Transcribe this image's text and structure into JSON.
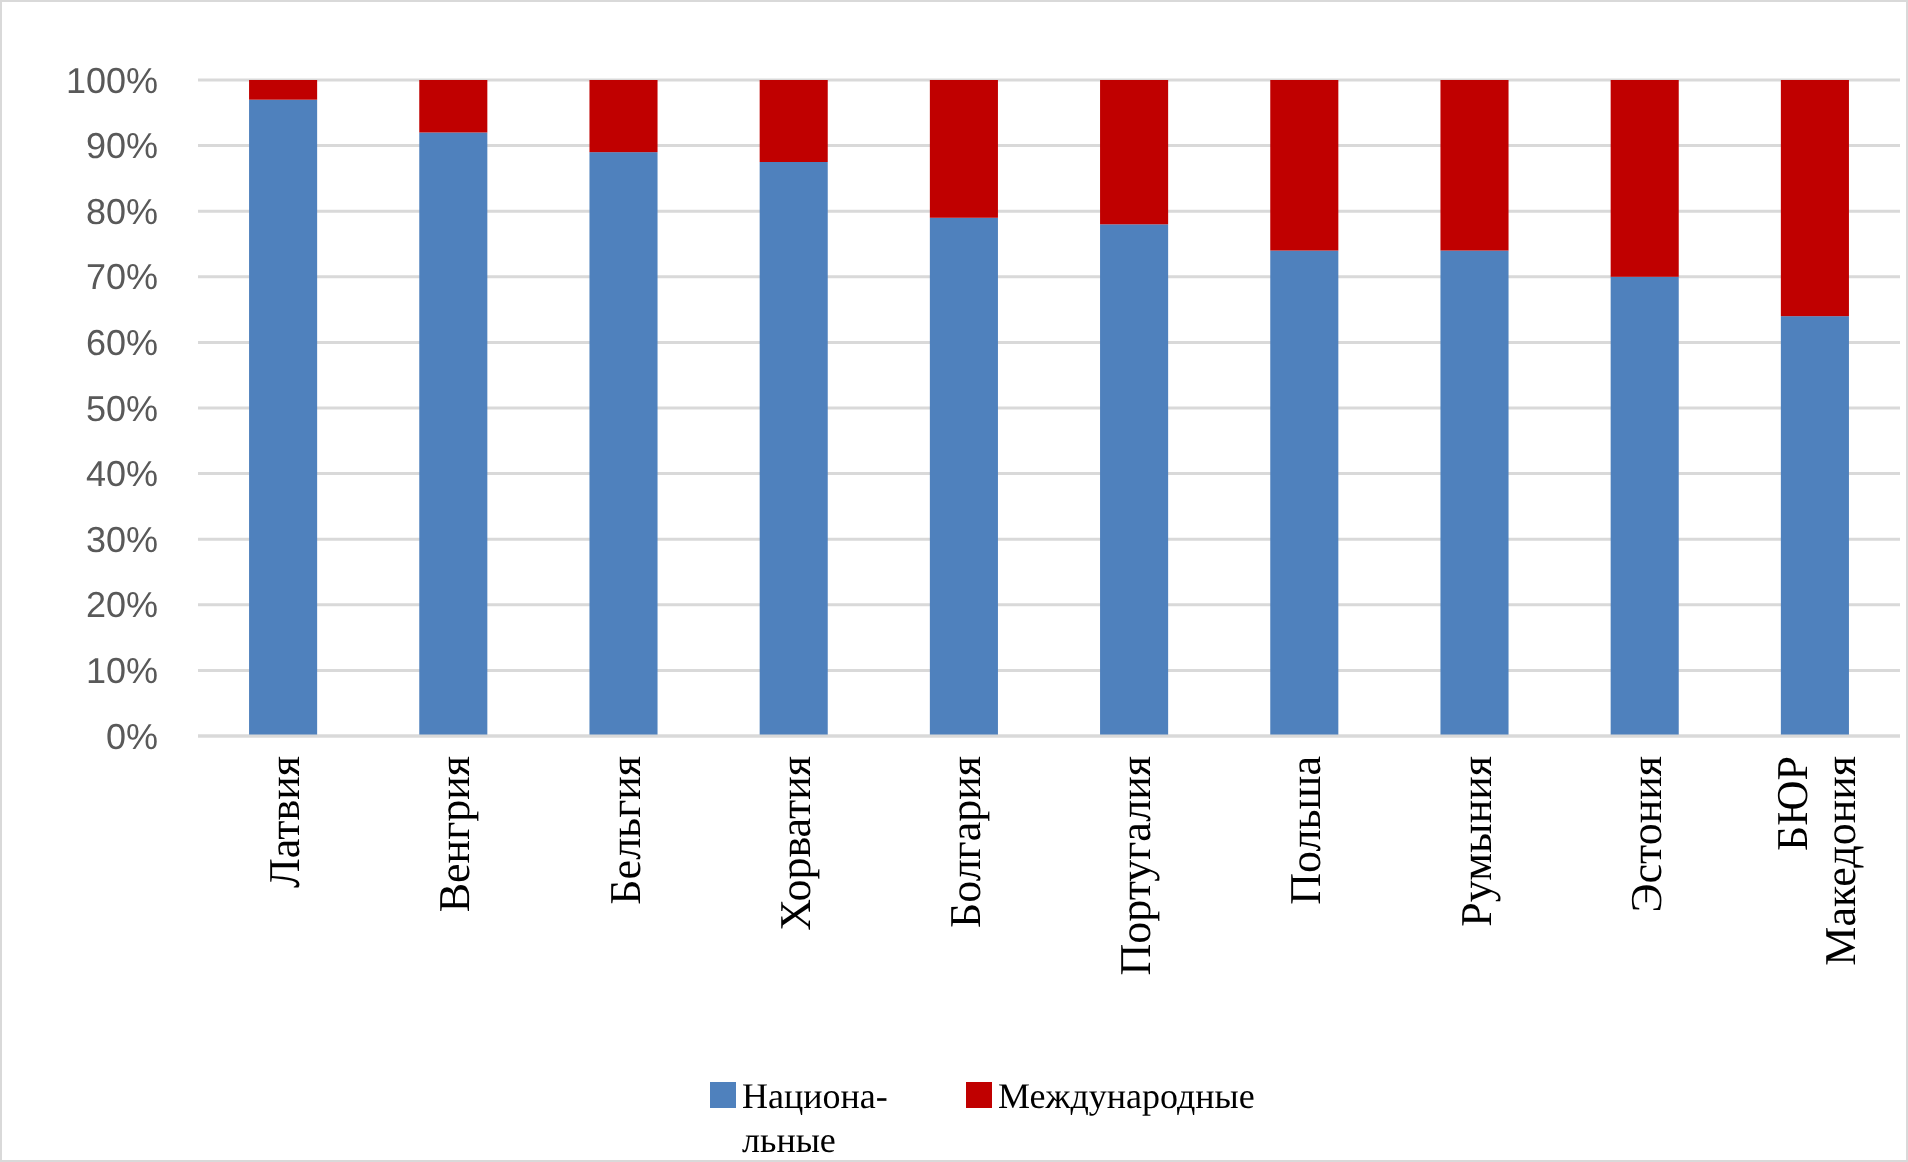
{
  "chart_data": {
    "type": "bar",
    "stacked": true,
    "categories": [
      "Латвия",
      "Венгрия",
      "Бельгия",
      "Хорватия",
      "Болгария",
      "Португалия",
      "Польша",
      "Румыния",
      "Эстония",
      "БЮР\nМакедония"
    ],
    "series": [
      {
        "name": "Национа-\nльные",
        "color": "#4f81bd",
        "values": [
          97,
          92,
          89,
          87.5,
          79,
          78,
          74,
          74,
          70,
          64
        ]
      },
      {
        "name": "Международные",
        "color": "#c00000",
        "values": [
          3,
          8,
          11,
          12.5,
          21,
          22,
          26,
          26,
          30,
          36
        ]
      }
    ],
    "ylim": [
      0,
      100
    ],
    "yticks": [
      {
        "value": 0,
        "label": "0%"
      },
      {
        "value": 10,
        "label": "10%"
      },
      {
        "value": 20,
        "label": "20%"
      },
      {
        "value": 30,
        "label": "30%"
      },
      {
        "value": 40,
        "label": "40%"
      },
      {
        "value": 50,
        "label": "50%"
      },
      {
        "value": 60,
        "label": "60%"
      },
      {
        "value": 70,
        "label": "70%"
      },
      {
        "value": 80,
        "label": "80%"
      },
      {
        "value": 90,
        "label": "90%"
      },
      {
        "value": 100,
        "label": "100%"
      }
    ],
    "grid": "y",
    "legend": "bottom"
  }
}
